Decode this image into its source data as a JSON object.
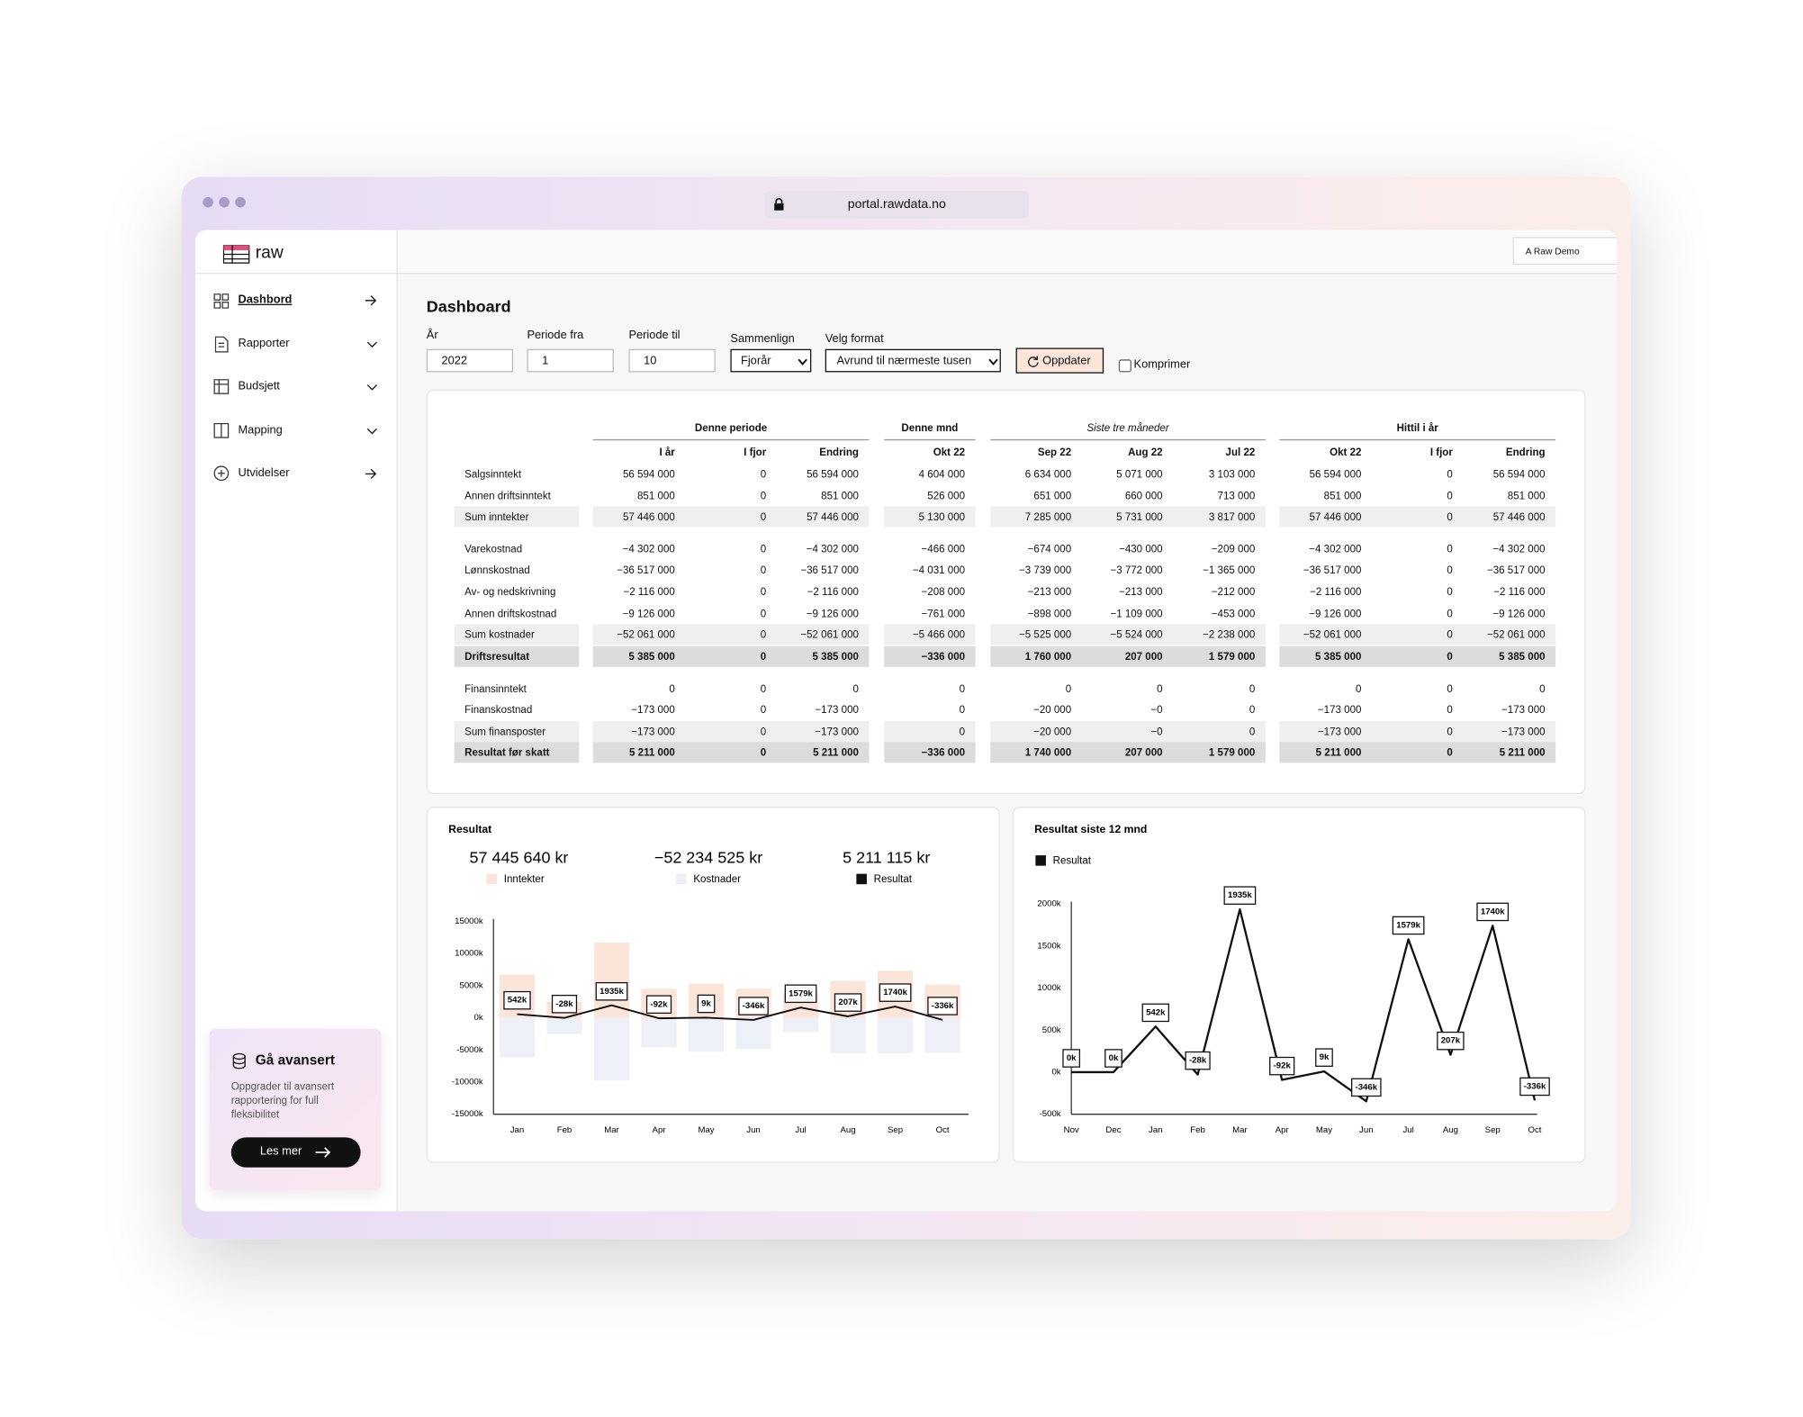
{
  "browser": {
    "url": "portal.rawdata.no"
  },
  "sidebar": {
    "logo": "raw",
    "nav": [
      "Dashbord",
      "Rapporter",
      "Budsjett",
      "Mapping",
      "Utvidelser"
    ],
    "promo": {
      "title": "Gå avansert",
      "text": "Oppgrader til avansert rapportering for full fleksibilitet",
      "button": "Les mer"
    }
  },
  "topbar": {
    "account": "A Raw Demo"
  },
  "header": {
    "title": "Dashboard"
  },
  "filters": [
    {
      "label": "År",
      "value": "2022"
    },
    {
      "label": "Periode fra",
      "value": "1"
    },
    {
      "label": "Periode til",
      "value": "10"
    },
    {
      "label": "Sammenlign",
      "value": "Fjorår"
    },
    {
      "label": "Velg format",
      "value": "Avrund til nærmeste tusen"
    }
  ],
  "update_button": "Oppdater",
  "compress": "Komprimer",
  "table": {
    "groups": [
      {
        "label": "Denne periode",
        "columns": [
          "I år",
          "I fjor",
          "Endring"
        ]
      },
      {
        "label": "Denne mnd",
        "columns": [
          "Okt 22"
        ]
      },
      {
        "label": "Siste tre måneder",
        "columns": [
          "Sep 22",
          "Aug 22",
          "Jul 22"
        ]
      },
      {
        "label": "Hittil i år",
        "columns": [
          "Okt 22",
          "I fjor",
          "Endring"
        ]
      }
    ],
    "rows": [
      [
        "Salgsinntekt",
        "56 594 000",
        "0",
        "56 594 000",
        "4 604 000",
        "6 634 000",
        "5 071 000",
        "3 103 000",
        "56 594 000",
        "0",
        "56 594 000"
      ],
      [
        "Annen driftsinntekt",
        "851 000",
        "0",
        "851 000",
        "526 000",
        "651 000",
        "660 000",
        "713 000",
        "851 000",
        "0",
        "851 000"
      ],
      [
        "Sum inntekter",
        "57 446 000",
        "0",
        "57 446 000",
        "5 130 000",
        "7 285 000",
        "5 731 000",
        "3 817 000",
        "57 446 000",
        "0",
        "57 446 000"
      ],
      [
        "Varekostnad",
        "−4 302 000",
        "0",
        "−4 302 000",
        "−466 000",
        "−674 000",
        "−430 000",
        "−209 000",
        "−4 302 000",
        "0",
        "−4 302 000"
      ],
      [
        "Lønnskostnad",
        "−36 517 000",
        "0",
        "−36 517 000",
        "−4 031 000",
        "−3 739 000",
        "−3 772 000",
        "−1 365 000",
        "−36 517 000",
        "0",
        "−36 517 000"
      ],
      [
        "Av- og nedskrivning",
        "−2 116 000",
        "0",
        "−2 116 000",
        "−208 000",
        "−213 000",
        "−213 000",
        "−212 000",
        "−2 116 000",
        "0",
        "−2 116 000"
      ],
      [
        "Annen driftskostnad",
        "−9 126 000",
        "0",
        "−9 126 000",
        "−761 000",
        "−898 000",
        "−1 109 000",
        "−453 000",
        "−9 126 000",
        "0",
        "−9 126 000"
      ],
      [
        "Sum kostnader",
        "−52 061 000",
        "0",
        "−52 061 000",
        "−5 466 000",
        "−5 525 000",
        "−5 524 000",
        "−2 238 000",
        "−52 061 000",
        "0",
        "−52 061 000"
      ],
      [
        "Driftsresultat",
        "5 385 000",
        "0",
        "5 385 000",
        "−336 000",
        "1 760 000",
        "207 000",
        "1 579 000",
        "5 385 000",
        "0",
        "5 385 000"
      ],
      [
        "Finansinntekt",
        "0",
        "0",
        "0",
        "0",
        "0",
        "0",
        "0",
        "0",
        "0",
        "0"
      ],
      [
        "Finanskostnad",
        "−173 000",
        "0",
        "−173 000",
        "0",
        "−20 000",
        "−0",
        "0",
        "−173 000",
        "0",
        "−173 000"
      ],
      [
        "Sum finansposter",
        "−173 000",
        "0",
        "−173 000",
        "0",
        "−20 000",
        "−0",
        "0",
        "−173 000",
        "0",
        "−173 000"
      ],
      [
        "Resultat før skatt",
        "5 211 000",
        "0",
        "5 211 000",
        "−336 000",
        "1 740 000",
        "207 000",
        "1 579 000",
        "5 211 000",
        "0",
        "5 211 000"
      ]
    ]
  },
  "chart_data": [
    {
      "type": "bar",
      "title": "Resultat",
      "categories": [
        "Jan",
        "Feb",
        "Mar",
        "Apr",
        "May",
        "Jun",
        "Jul",
        "Aug",
        "Sep",
        "Oct"
      ],
      "series": [
        {
          "name": "Inntekter",
          "color": "#fbe4d8",
          "total": "57 445 640 kr",
          "values": [
            6700,
            2500,
            11700,
            4500,
            5300,
            4500,
            3817,
            5731,
            7285,
            5130
          ]
        },
        {
          "name": "Kostnader",
          "color": "#edf1f7",
          "total": "−52 234 525 kr",
          "values": [
            -6158,
            -2528,
            -9765,
            -4592,
            -5291,
            -4846,
            -2238,
            -5524,
            -5545,
            -5466
          ]
        },
        {
          "name": "Resultat",
          "color": "#111111",
          "type": "line",
          "total": "5 211 115 kr",
          "values": [
            542,
            -28,
            1935,
            -92,
            9,
            -346,
            1579,
            207,
            1740,
            -336
          ],
          "value_labels": [
            "542k",
            "-28k",
            "1935k",
            "-92k",
            "9k",
            "-346k",
            "1579k",
            "207k",
            "1740k",
            "-336k"
          ]
        }
      ],
      "ylim": [
        -15000,
        15000
      ],
      "yticks": [
        {
          "value": 15000,
          "label": "15000k"
        },
        {
          "value": 10000,
          "label": "10000k"
        },
        {
          "value": 5000,
          "label": "5000k"
        },
        {
          "value": 0,
          "label": "0k"
        },
        {
          "value": -5000,
          "label": "-5000k"
        },
        {
          "value": -10000,
          "label": "-10000k"
        },
        {
          "value": -15000,
          "label": "-15000k"
        }
      ]
    },
    {
      "type": "line",
      "title": "Resultat siste 12 mnd",
      "categories": [
        "Nov",
        "Dec",
        "Jan",
        "Feb",
        "Mar",
        "Apr",
        "May",
        "Jun",
        "Jul",
        "Aug",
        "Sep",
        "Oct"
      ],
      "series": [
        {
          "name": "Resultat",
          "color": "#111111",
          "values": [
            0,
            0,
            542,
            -28,
            1935,
            -92,
            9,
            -346,
            1579,
            207,
            1740,
            -336
          ],
          "value_labels": [
            "0k",
            "0k",
            "542k",
            "-28k",
            "1935k",
            "-92k",
            "9k",
            "-346k",
            "1579k",
            "207k",
            "1740k",
            "-336k"
          ]
        }
      ],
      "ylim": [
        -500,
        2000
      ],
      "yticks": [
        {
          "value": 2000,
          "label": "2000k"
        },
        {
          "value": 1500,
          "label": "1500k"
        },
        {
          "value": 1000,
          "label": "1000k"
        },
        {
          "value": 500,
          "label": "500k"
        },
        {
          "value": 0,
          "label": "0k"
        },
        {
          "value": -500,
          "label": "-500k"
        }
      ]
    }
  ]
}
